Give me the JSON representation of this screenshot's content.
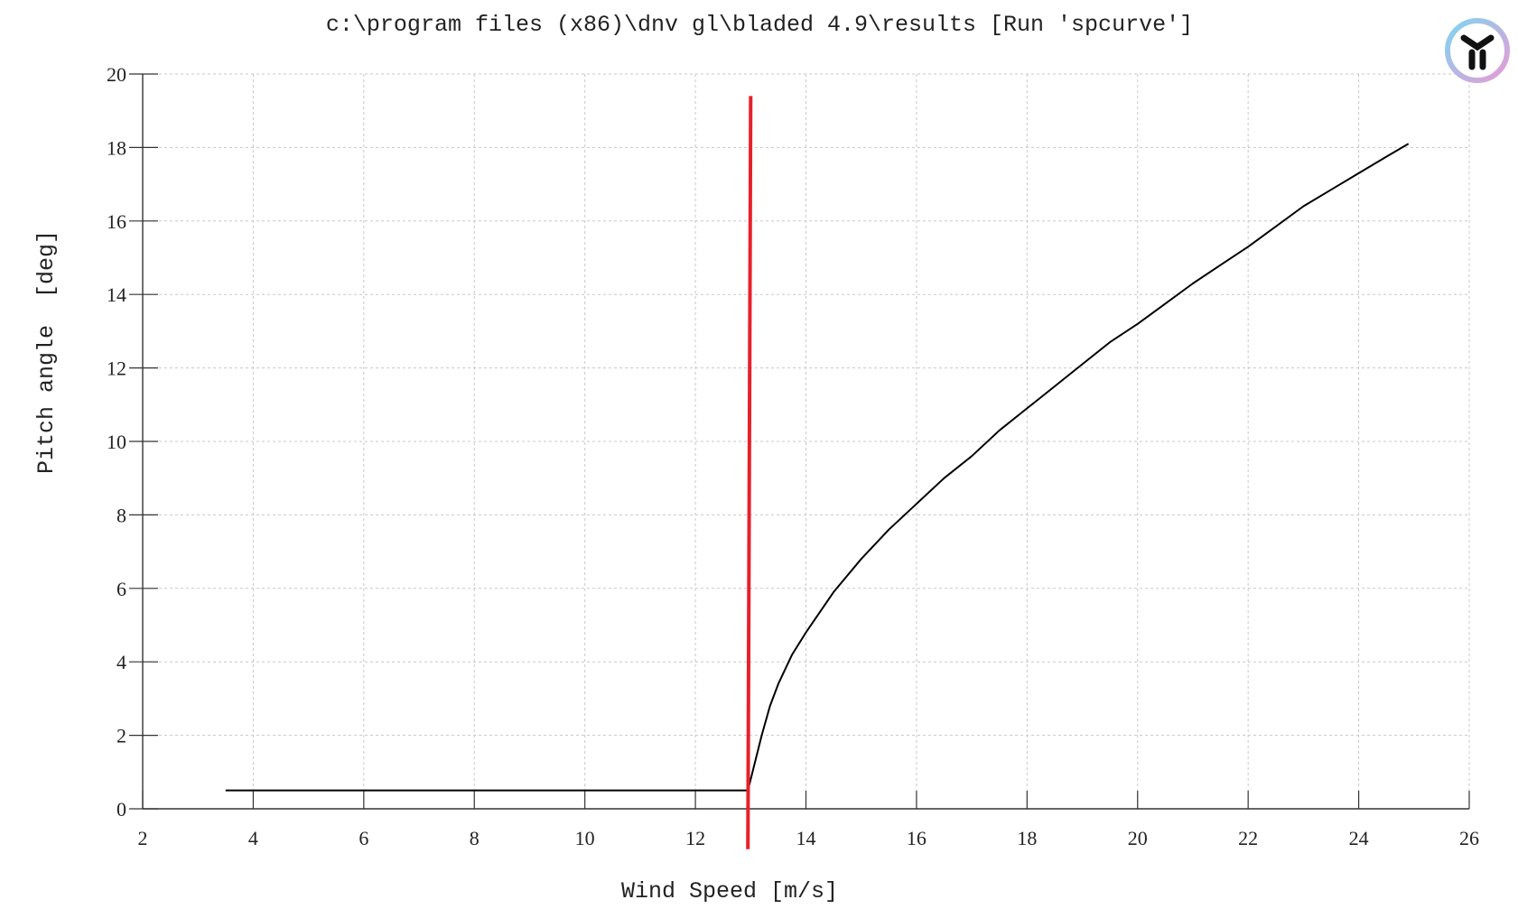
{
  "chart_data": {
    "type": "line",
    "title": "c:\\program files (x86)\\dnv gl\\bladed 4.9\\results [Run 'spcurve']",
    "xlabel": "Wind Speed [m/s]",
    "ylabel": "Pitch angle  [deg]",
    "xlim": [
      2,
      26
    ],
    "ylim": [
      0,
      20
    ],
    "xticks": [
      2,
      4,
      6,
      8,
      10,
      12,
      14,
      16,
      18,
      20,
      22,
      24,
      26
    ],
    "yticks": [
      0,
      2,
      4,
      6,
      8,
      10,
      12,
      14,
      16,
      18,
      20
    ],
    "grid": true,
    "series": [
      {
        "color": "#000000",
        "x": [
          3.5,
          12.95,
          13.0,
          13.1,
          13.2,
          13.35,
          13.5,
          13.75,
          14.0,
          14.5,
          15.0,
          15.5,
          16.0,
          16.5,
          17.0,
          17.5,
          18.0,
          18.5,
          19.0,
          19.5,
          20.0,
          20.5,
          21.0,
          21.5,
          22.0,
          22.5,
          23.0,
          23.5,
          24.0,
          24.5,
          24.9
        ],
        "y": [
          0.5,
          0.5,
          0.8,
          1.4,
          2.0,
          2.8,
          3.4,
          4.2,
          4.8,
          5.9,
          6.8,
          7.6,
          8.3,
          9.0,
          9.6,
          10.3,
          10.9,
          11.5,
          12.1,
          12.7,
          13.2,
          13.75,
          14.3,
          14.8,
          15.3,
          15.85,
          16.4,
          16.85,
          17.3,
          17.75,
          18.1
        ]
      },
      {
        "color": "#e8202a",
        "x": [
          12.95,
          13.0
        ],
        "y": [
          -1.1,
          19.4
        ]
      }
    ]
  },
  "logo": {
    "icon": "y-shaped-app-logo-icon"
  }
}
